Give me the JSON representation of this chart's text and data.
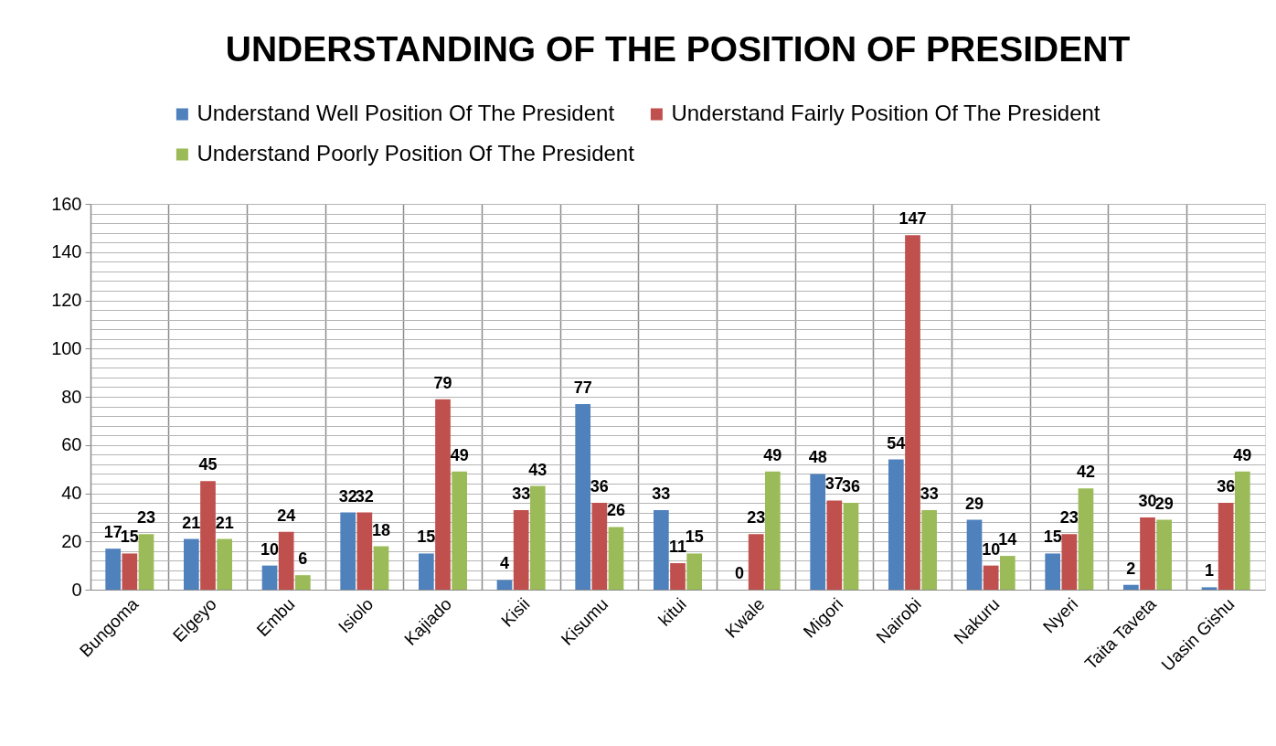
{
  "chart_data": {
    "type": "bar",
    "title": "UNDERSTANDING OF THE POSITION OF PRESIDENT",
    "categories": [
      "Bungoma",
      "Elgeyo",
      "Embu",
      "Isiolo",
      "Kajiado",
      "Kisii",
      "Kisumu",
      "kitui",
      "Kwale",
      "Migori",
      "Nairobi",
      "Nakuru",
      "Nyeri",
      "Taita Taveta",
      "Uasin Gishu"
    ],
    "series": [
      {
        "name": "Understand Well Position Of The President",
        "color": "#4f81bd",
        "values": [
          17,
          21,
          10,
          32,
          15,
          4,
          77,
          33,
          0,
          48,
          54,
          29,
          15,
          2,
          1
        ]
      },
      {
        "name": "Understand Fairly Position Of The President",
        "color": "#c0504d",
        "values": [
          15,
          45,
          24,
          32,
          79,
          33,
          36,
          11,
          23,
          37,
          147,
          10,
          23,
          30,
          36
        ]
      },
      {
        "name": "Understand Poorly Position Of The President",
        "color": "#9bbb59",
        "values": [
          23,
          21,
          6,
          18,
          49,
          43,
          26,
          15,
          49,
          36,
          33,
          14,
          42,
          29,
          49
        ]
      }
    ],
    "ylim": [
      0,
      160
    ],
    "yticks": [
      0,
      {
        "value": 4,
        "label": null
      },
      {
        "value": 8,
        "label": null
      },
      {
        "value": 12,
        "label": null
      },
      {
        "value": 16,
        "label": null
      },
      20,
      {
        "value": 24,
        "label": null
      },
      {
        "value": 28,
        "label": null
      },
      {
        "value": 32,
        "label": null
      },
      {
        "value": 36,
        "label": null
      },
      40,
      {
        "value": 44,
        "label": null
      },
      {
        "value": 48,
        "label": null
      },
      {
        "value": 52,
        "label": null
      },
      {
        "value": 56,
        "label": null
      },
      60,
      {
        "value": 64,
        "label": null
      },
      {
        "value": 68,
        "label": null
      },
      {
        "value": 72,
        "label": null
      },
      {
        "value": 76,
        "label": null
      },
      80,
      {
        "value": 84,
        "label": null
      },
      {
        "value": 88,
        "label": null
      },
      {
        "value": 92,
        "label": null
      },
      {
        "value": 96,
        "label": null
      },
      100,
      {
        "value": 104,
        "label": null
      },
      {
        "value": 108,
        "label": null
      },
      {
        "value": 112,
        "label": null
      },
      {
        "value": 116,
        "label": null
      },
      120,
      {
        "value": 124,
        "label": null
      },
      {
        "value": 128,
        "label": null
      },
      {
        "value": 132,
        "label": null
      },
      {
        "value": 136,
        "label": null
      },
      140,
      {
        "value": 144,
        "label": null
      },
      {
        "value": 148,
        "label": null
      },
      {
        "value": 152,
        "label": null
      },
      {
        "value": 156,
        "label": null
      },
      160
    ],
    "grid": true,
    "legend": "top",
    "data_labels": true
  }
}
